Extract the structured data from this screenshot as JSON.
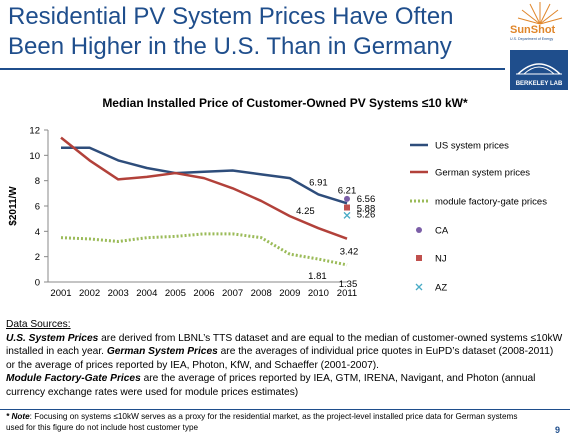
{
  "slide": {
    "title": "Residential PV System Prices Have Often Been Higher in the U.S. Than in Germany",
    "page_number": "9"
  },
  "logos": {
    "sunshot": "SunShot",
    "sunshot_sub": "U.S. Department of Energy",
    "berkeley": "BERKELEY LAB"
  },
  "chart_data": {
    "type": "line",
    "title": "Median Installed Price of Customer-Owned PV Systems ≤10 kW*",
    "ylabel": "$2011/W",
    "xlabel": "",
    "ylim": [
      0,
      12
    ],
    "yticks": [
      0,
      2,
      4,
      6,
      8,
      10,
      12
    ],
    "x": [
      "2001",
      "2002",
      "2003",
      "2004",
      "2005",
      "2006",
      "2007",
      "2008",
      "2009",
      "2010",
      "2011"
    ],
    "grid": false,
    "legend_position": "right",
    "series": [
      {
        "name": "US system prices",
        "style": "solid",
        "color": "#2e4d7b",
        "values": [
          10.6,
          10.6,
          9.6,
          9.0,
          8.6,
          8.7,
          8.8,
          8.5,
          8.2,
          6.91,
          6.21
        ]
      },
      {
        "name": "German system prices",
        "style": "solid",
        "color": "#b2413a",
        "values": [
          11.4,
          9.6,
          8.1,
          8.3,
          8.6,
          8.2,
          7.4,
          6.4,
          5.2,
          4.25,
          3.42
        ]
      },
      {
        "name": "module factory-gate prices",
        "style": "dotted",
        "color": "#9bbb59",
        "values": [
          3.5,
          3.4,
          3.2,
          3.5,
          3.6,
          3.8,
          3.8,
          3.5,
          2.2,
          1.81,
          1.35
        ]
      }
    ],
    "state_points": [
      {
        "name": "CA",
        "marker": "circle",
        "color": "#7b5ea7",
        "x": "2011",
        "value": 6.56
      },
      {
        "name": "NJ",
        "marker": "square",
        "color": "#c0504d",
        "x": "2011",
        "value": 5.88
      },
      {
        "name": "AZ",
        "marker": "x",
        "color": "#4bacc6",
        "x": "2011",
        "value": 5.26
      }
    ],
    "data_labels": [
      {
        "text": "6.91",
        "series": "US system prices",
        "x": "2010",
        "value": 6.91
      },
      {
        "text": "6.21",
        "series": "US system prices",
        "x": "2011",
        "value": 6.21
      },
      {
        "text": "4.25",
        "series": "German system prices",
        "x": "2010",
        "value": 4.25
      },
      {
        "text": "3.42",
        "series": "German system prices",
        "x": "2011",
        "value": 3.42
      },
      {
        "text": "1.81",
        "series": "module factory-gate prices",
        "x": "2010",
        "value": 1.81
      },
      {
        "text": "1.35",
        "series": "module factory-gate prices",
        "x": "2011",
        "value": 1.35
      },
      {
        "text": "6.56",
        "series": "CA",
        "x": "2011",
        "value": 6.56
      },
      {
        "text": "5.88",
        "series": "NJ",
        "x": "2011",
        "value": 5.88
      },
      {
        "text": "5.26",
        "series": "AZ",
        "x": "2011",
        "value": 5.26
      }
    ]
  },
  "sources": {
    "heading": "Data Sources:",
    "us_label": "U.S. System Prices",
    "us_text": " are derived from LBNL’s TTS dataset and are equal to the median of customer-owned systems ≤10kW installed in each year.  ",
    "german_label": "German System Prices",
    "german_text": " are the averages of individual price quotes in EuPD’s dataset (2008-2011) or the average of prices reported by IEA, Photon, KfW, and Schaeffer  (2001-2007).",
    "module_label": "Module Factory-Gate Prices",
    "module_text": " are the average of prices reported by IEA, GTM, IRENA, Navigant, and Photon (annual currency exchange rates were used for module prices estimates)"
  },
  "note": {
    "label": "* Note",
    "text": ": Focusing on systems ≤10kW serves as a proxy for the residential market, as the project-level installed price data for German systems used for this figure do not include host customer type"
  }
}
